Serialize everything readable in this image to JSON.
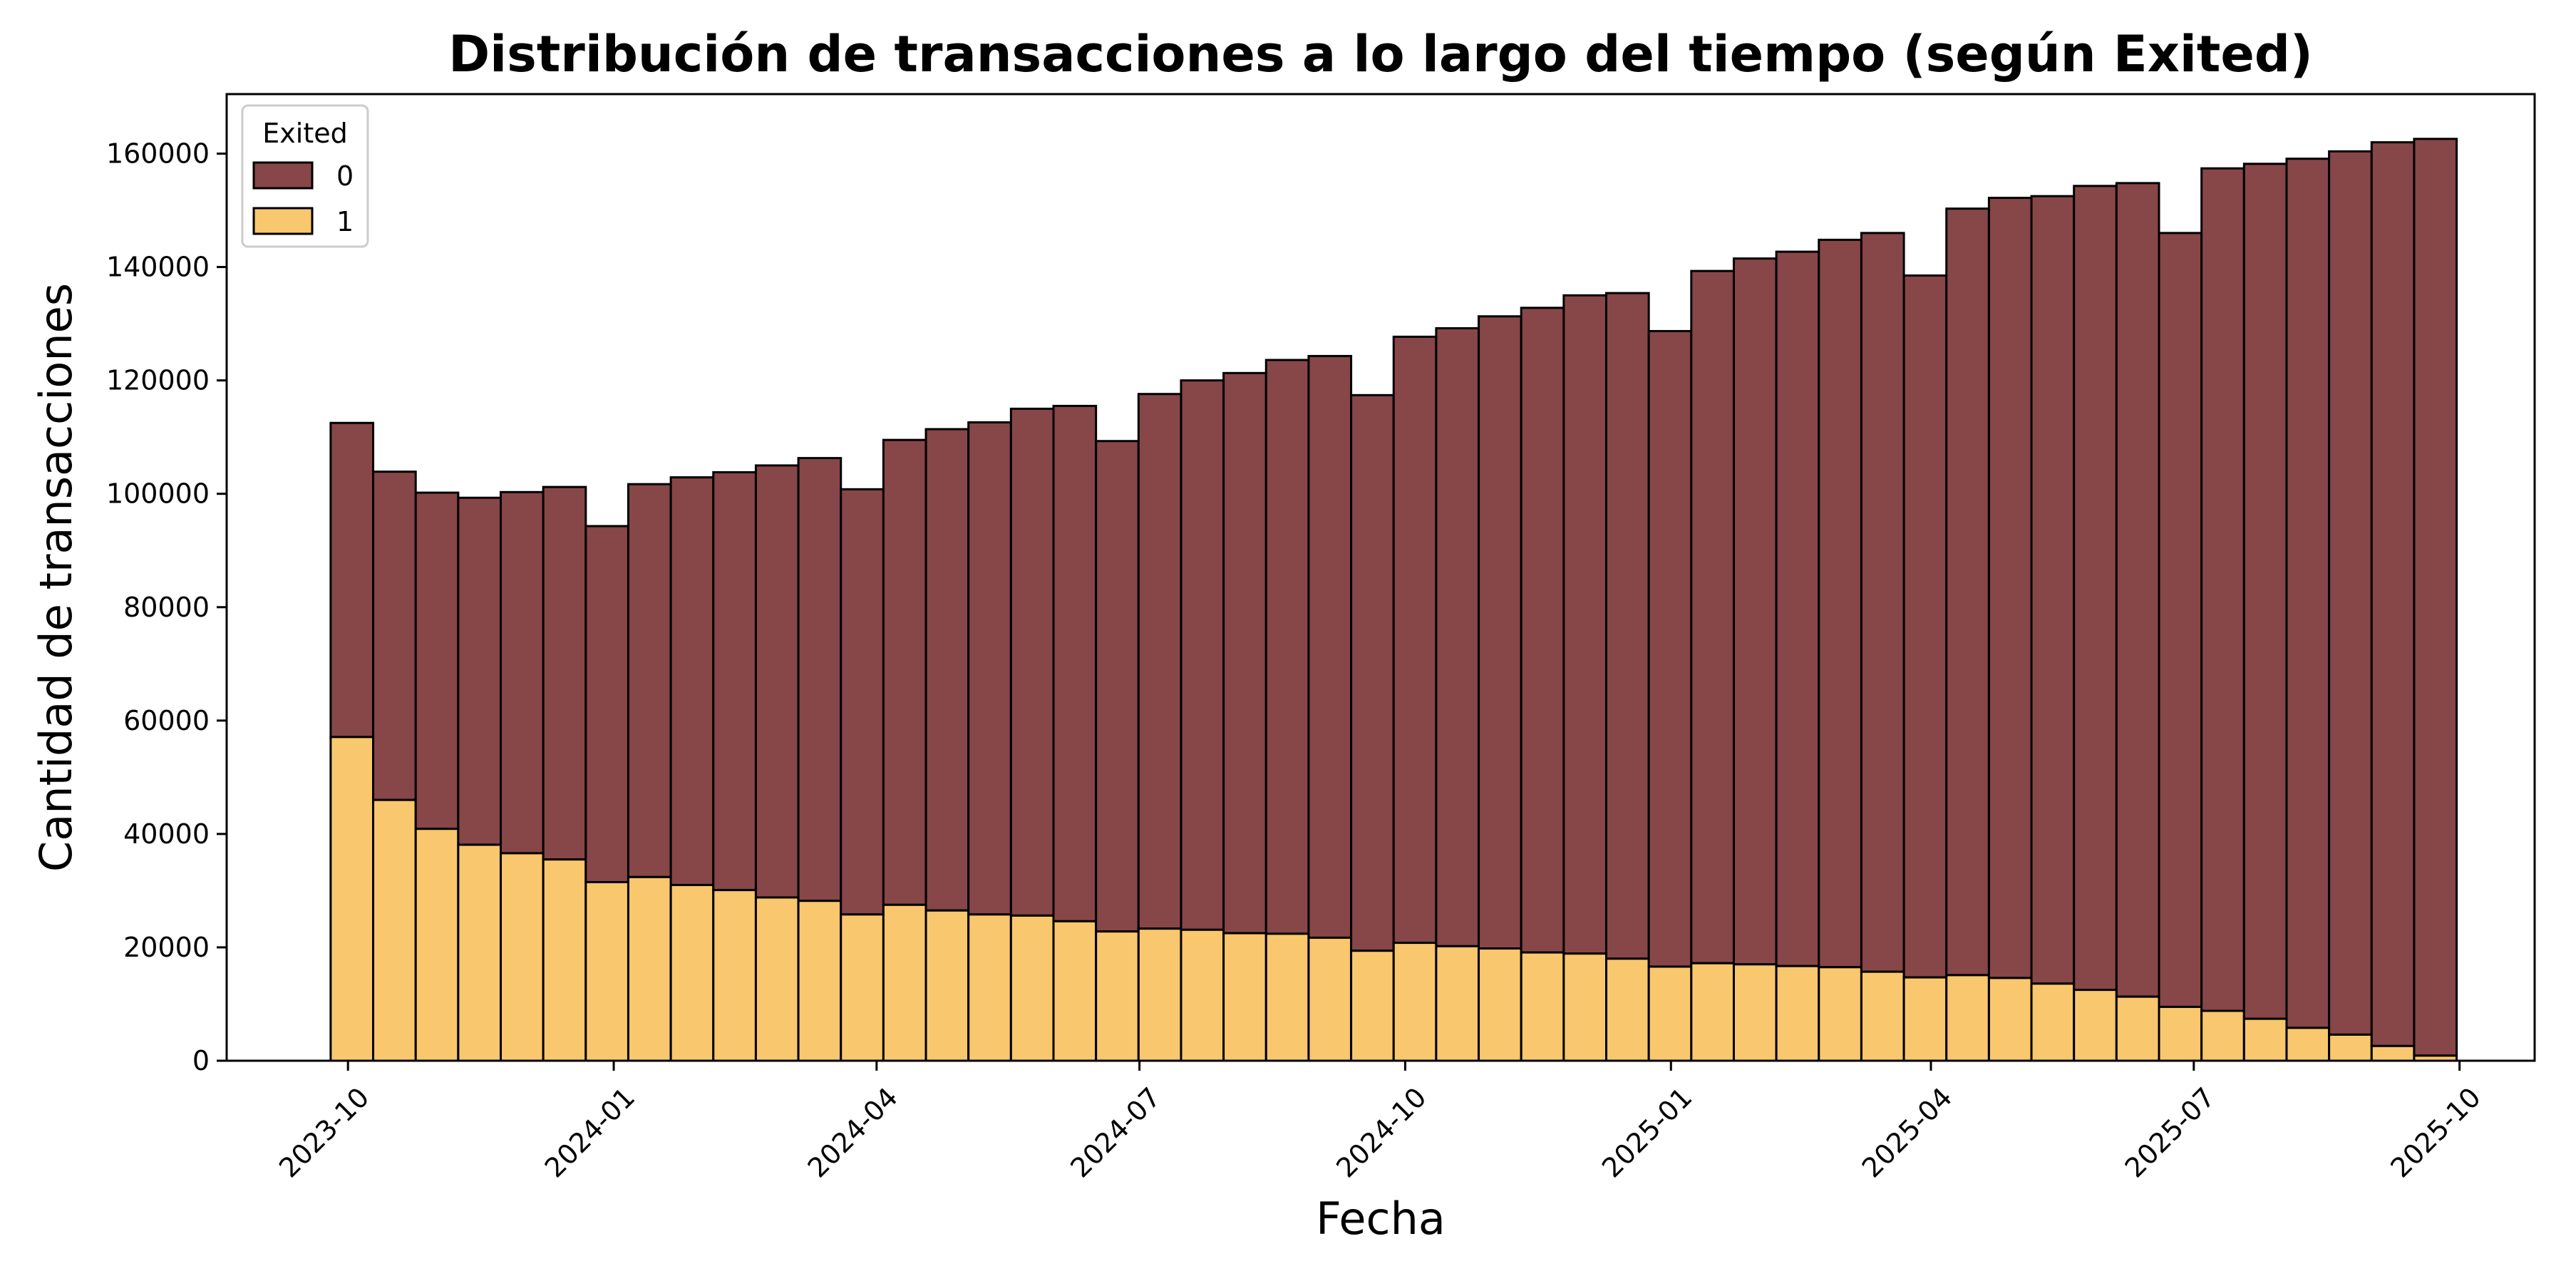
{
  "chart_data": {
    "type": "bar",
    "stacked": true,
    "title": "Distribución de transacciones a lo largo del tiempo (según Exited)",
    "xlabel": "Fecha",
    "ylabel": "Cantidad de transacciones",
    "x_tick_labels": [
      "2023-10",
      "2024-01",
      "2024-04",
      "2024-07",
      "2024-10",
      "2025-01",
      "2025-04",
      "2025-07",
      "2025-10"
    ],
    "y_ticks": [
      0,
      20000,
      40000,
      60000,
      80000,
      100000,
      120000,
      140000,
      160000
    ],
    "ylim": [
      0,
      170500
    ],
    "xlim": [
      "2023-08-20",
      "2025-10-27"
    ],
    "grid": false,
    "legend": {
      "title": "Exited",
      "position": "top-left"
    },
    "bin_start": "2023-09-25",
    "bin_end": "2025-09-30",
    "series": [
      {
        "name": "0",
        "color": "#874648",
        "values": [
          112500,
          103900,
          100200,
          99300,
          100300,
          101200,
          94300,
          101700,
          102900,
          103800,
          105000,
          106300,
          100800,
          109500,
          111400,
          112600,
          115000,
          115500,
          109300,
          117600,
          120000,
          121300,
          123600,
          124300,
          117400,
          127700,
          129200,
          131300,
          132800,
          135000,
          135400,
          128700,
          139300,
          141500,
          142700,
          144800,
          146000,
          138500,
          150300,
          152200,
          152500,
          154300,
          154800,
          146000,
          157400,
          158200,
          159100,
          160400,
          162000,
          162600
        ]
      },
      {
        "name": "1",
        "color": "#f9c76d",
        "values": [
          57100,
          46000,
          40900,
          38100,
          36600,
          35500,
          31500,
          32400,
          31000,
          30100,
          28800,
          28200,
          25800,
          27500,
          26500,
          25800,
          25600,
          24600,
          22800,
          23300,
          23100,
          22500,
          22400,
          21700,
          19400,
          20800,
          20200,
          19800,
          19100,
          18900,
          18000,
          16600,
          17200,
          17000,
          16700,
          16500,
          15700,
          14700,
          15100,
          14600,
          13600,
          12500,
          11300,
          9500,
          8800,
          7400,
          5800,
          4600,
          2600,
          900
        ]
      }
    ]
  }
}
